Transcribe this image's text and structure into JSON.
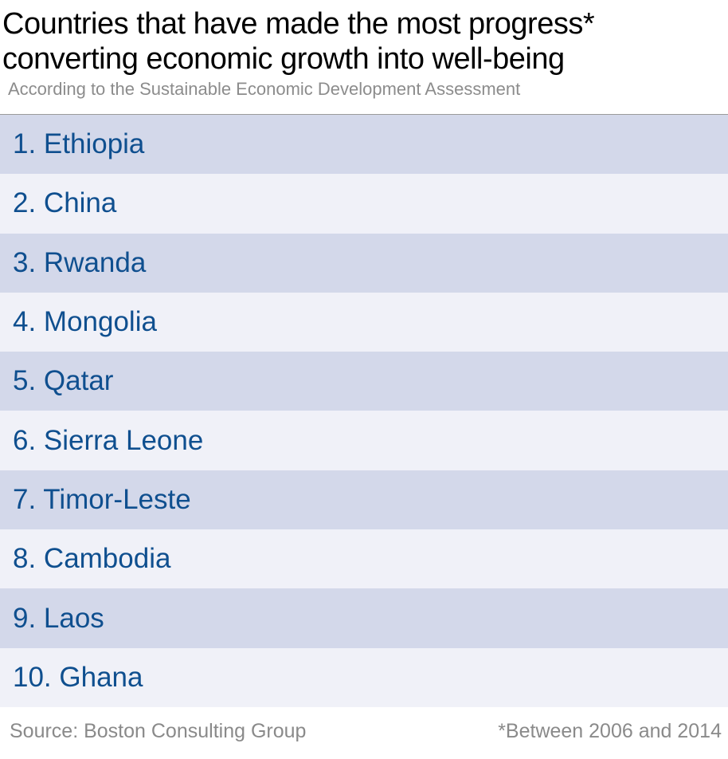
{
  "title_line1": "Countries that have made the most progress*",
  "title_line2": "converting economic growth into well-being",
  "subtitle": "According to the Sustainable Economic Development Assessment",
  "source": "Source: Boston Consulting Group",
  "footnote": "*Between 2006 and 2014",
  "colors": {
    "row_dark": "#d3d8ea",
    "row_light": "#f0f1f8",
    "text_blue": "#0f4f8f",
    "gray_text": "#8c8c8c"
  },
  "chart_data": {
    "type": "table",
    "title": "Countries that have made the most progress* converting economic growth into well-being",
    "subtitle": "According to the Sustainable Economic Development Assessment",
    "rows": [
      {
        "rank": 1,
        "country": "Ethiopia",
        "label": "1. Ethiopia"
      },
      {
        "rank": 2,
        "country": "China",
        "label": "2. China"
      },
      {
        "rank": 3,
        "country": "Rwanda",
        "label": "3. Rwanda"
      },
      {
        "rank": 4,
        "country": "Mongolia",
        "label": "4. Mongolia"
      },
      {
        "rank": 5,
        "country": "Qatar",
        "label": "5. Qatar"
      },
      {
        "rank": 6,
        "country": "Sierra Leone",
        "label": "6. Sierra Leone"
      },
      {
        "rank": 7,
        "country": "Timor-Leste",
        "label": "7. Timor-Leste"
      },
      {
        "rank": 8,
        "country": "Cambodia",
        "label": "8. Cambodia"
      },
      {
        "rank": 9,
        "country": "Laos",
        "label": "9. Laos"
      },
      {
        "rank": 10,
        "country": "Ghana",
        "label": "10. Ghana"
      }
    ]
  }
}
